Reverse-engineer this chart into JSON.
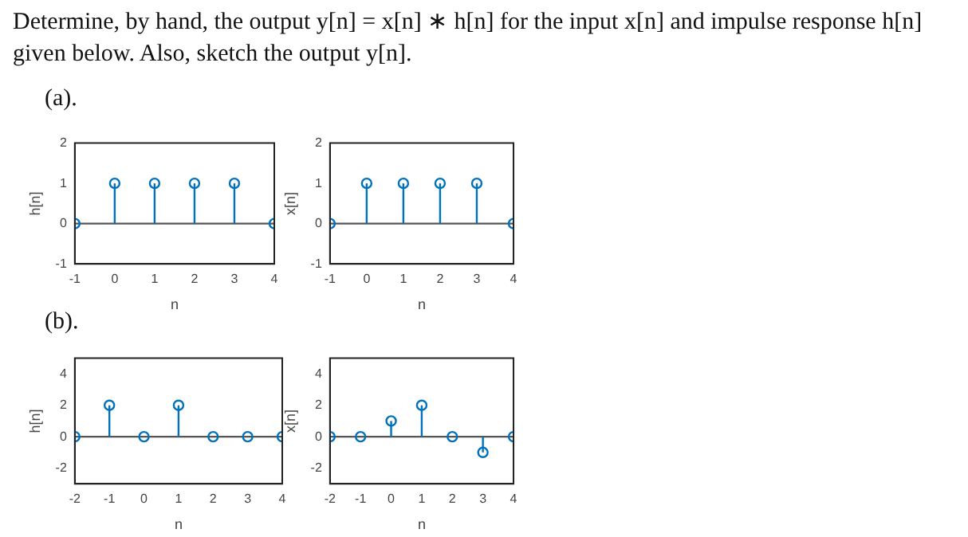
{
  "chart_data": [
    {
      "type": "lollipop",
      "title": "Determine, by hand, the output y[n] = x[n] ∗ h[n] for the input x[n] and impulse response h[n] given below. Also, sketch the output y[n].",
      "subtitle": "(a).",
      "x": [
        -1,
        0,
        1,
        2,
        3,
        4
      ],
      "values": [
        0,
        1,
        1,
        1,
        1,
        0
      ],
      "color": "#0072bd",
      "marker": "circle",
      "xlim": [
        -1,
        4
      ],
      "xticks": [
        -1,
        0,
        1,
        2,
        3,
        4
      ],
      "ylim": [
        -1,
        2
      ],
      "yticks": [
        -1,
        0,
        1,
        2
      ],
      "xlabel": "n",
      "ylabel": "h[n]"
    },
    {
      "type": "lollipop",
      "x": [
        -1,
        0,
        1,
        2,
        3,
        4
      ],
      "values": [
        0,
        1,
        1,
        1,
        1,
        0
      ],
      "color": "#0072bd",
      "marker": "circle",
      "xlim": [
        -1,
        4
      ],
      "xticks": [
        -1,
        0,
        1,
        2,
        3,
        4
      ],
      "ylim": [
        -1,
        2
      ],
      "yticks": [
        -1,
        0,
        1,
        2
      ],
      "xlabel": "n",
      "ylabel": "x[n]"
    },
    {
      "type": "lollipop",
      "subtitle": "(b).",
      "x": [
        -2,
        -1,
        0,
        1,
        2,
        3,
        4
      ],
      "values": [
        0,
        2,
        0,
        2,
        0,
        0,
        0
      ],
      "color": "#0072bd",
      "marker": "circle",
      "xlim": [
        -2,
        4
      ],
      "xticks": [
        -2,
        -1,
        0,
        1,
        2,
        3,
        4
      ],
      "ylim": [
        -3,
        5
      ],
      "yticks": [
        -2,
        0,
        2,
        4
      ],
      "xlabel": "n",
      "ylabel": "h[n]"
    },
    {
      "type": "lollipop",
      "x": [
        -2,
        -1,
        0,
        1,
        2,
        3,
        4
      ],
      "values": [
        0,
        0,
        1,
        2,
        0,
        -1,
        0
      ],
      "color": "#0072bd",
      "marker": "circle",
      "xlim": [
        -2,
        4
      ],
      "xticks": [
        -2,
        -1,
        0,
        1,
        2,
        3,
        4
      ],
      "ylim": [
        -3,
        5
      ],
      "yticks": [
        -2,
        0,
        2,
        4
      ],
      "xlabel": "n",
      "ylabel": "x[n]"
    }
  ]
}
